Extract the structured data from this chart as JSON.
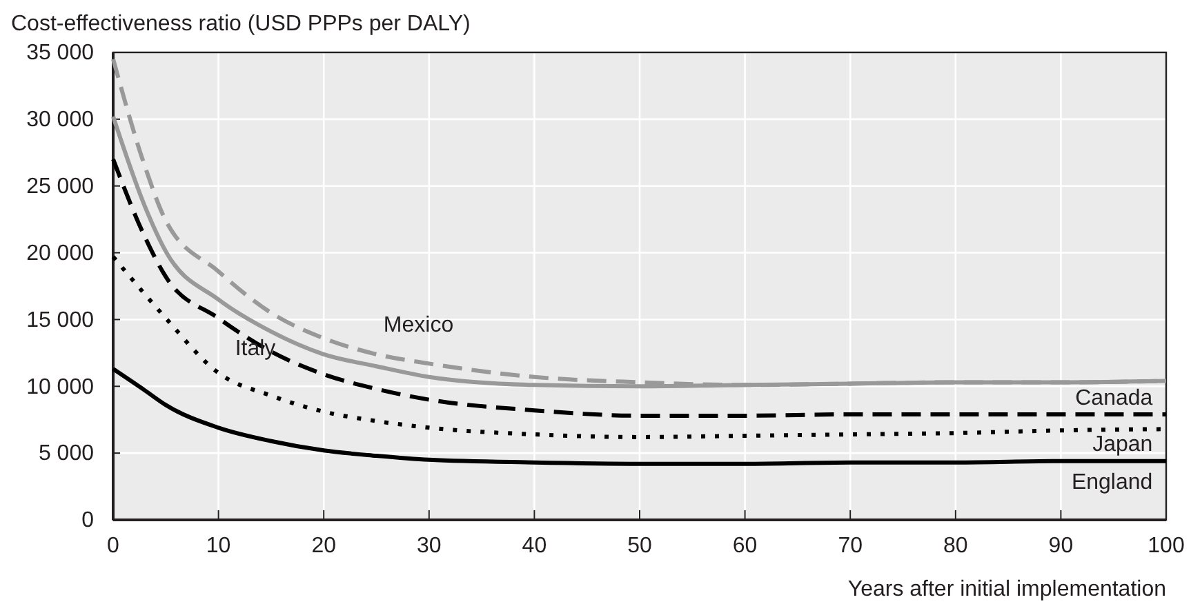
{
  "chart_data": {
    "type": "line",
    "ylabel": "Cost-effectiveness ratio (USD PPPs per DALY)",
    "xlabel": "Years after initial implementation",
    "xlim": [
      0,
      100
    ],
    "xticks": [
      0,
      10,
      20,
      30,
      40,
      50,
      60,
      70,
      80,
      90,
      100
    ],
    "ylim": [
      0,
      35000
    ],
    "yticks": [
      {
        "value": 0,
        "label": "0"
      },
      {
        "value": 5000,
        "label": "5 000"
      },
      {
        "value": 10000,
        "label": "10 000"
      },
      {
        "value": 15000,
        "label": "15 000"
      },
      {
        "value": 20000,
        "label": "20 000"
      },
      {
        "value": 25000,
        "label": "25 000"
      },
      {
        "value": 30000,
        "label": "30 000"
      },
      {
        "value": 35000,
        "label": "35 000"
      }
    ],
    "grid": true,
    "x": [
      0,
      3,
      5,
      10,
      15,
      20,
      25,
      30,
      40,
      50,
      60,
      70,
      80,
      90,
      100
    ],
    "series": [
      {
        "name": "Mexico",
        "color": "#999999",
        "line_style": "dashed",
        "values": [
          34500,
          26500,
          22400,
          18600,
          15500,
          13600,
          12400,
          11700,
          10700,
          10300,
          10100,
          10200,
          10300,
          10300,
          10400
        ]
      },
      {
        "name": "Canada",
        "color": "#999999",
        "line_style": "solid",
        "values": [
          30200,
          23500,
          20100,
          16500,
          14100,
          12400,
          11500,
          10700,
          10100,
          10000,
          10100,
          10200,
          10300,
          10300,
          10400
        ]
      },
      {
        "name": "Italy",
        "color": "#000000",
        "line_style": "dashed",
        "values": [
          27000,
          21200,
          18200,
          15100,
          12600,
          10900,
          9800,
          9000,
          8200,
          7800,
          7800,
          7900,
          7900,
          7900,
          7900
        ]
      },
      {
        "name": "Japan",
        "color": "#000000",
        "line_style": "dotted",
        "values": [
          19700,
          16900,
          15100,
          11000,
          9300,
          8100,
          7400,
          6900,
          6400,
          6200,
          6300,
          6400,
          6500,
          6700,
          6800
        ]
      },
      {
        "name": "England",
        "color": "#000000",
        "line_style": "solid",
        "values": [
          11300,
          9700,
          8600,
          6900,
          5900,
          5200,
          4800,
          4500,
          4300,
          4200,
          4200,
          4300,
          4300,
          4400,
          4400
        ]
      }
    ]
  }
}
